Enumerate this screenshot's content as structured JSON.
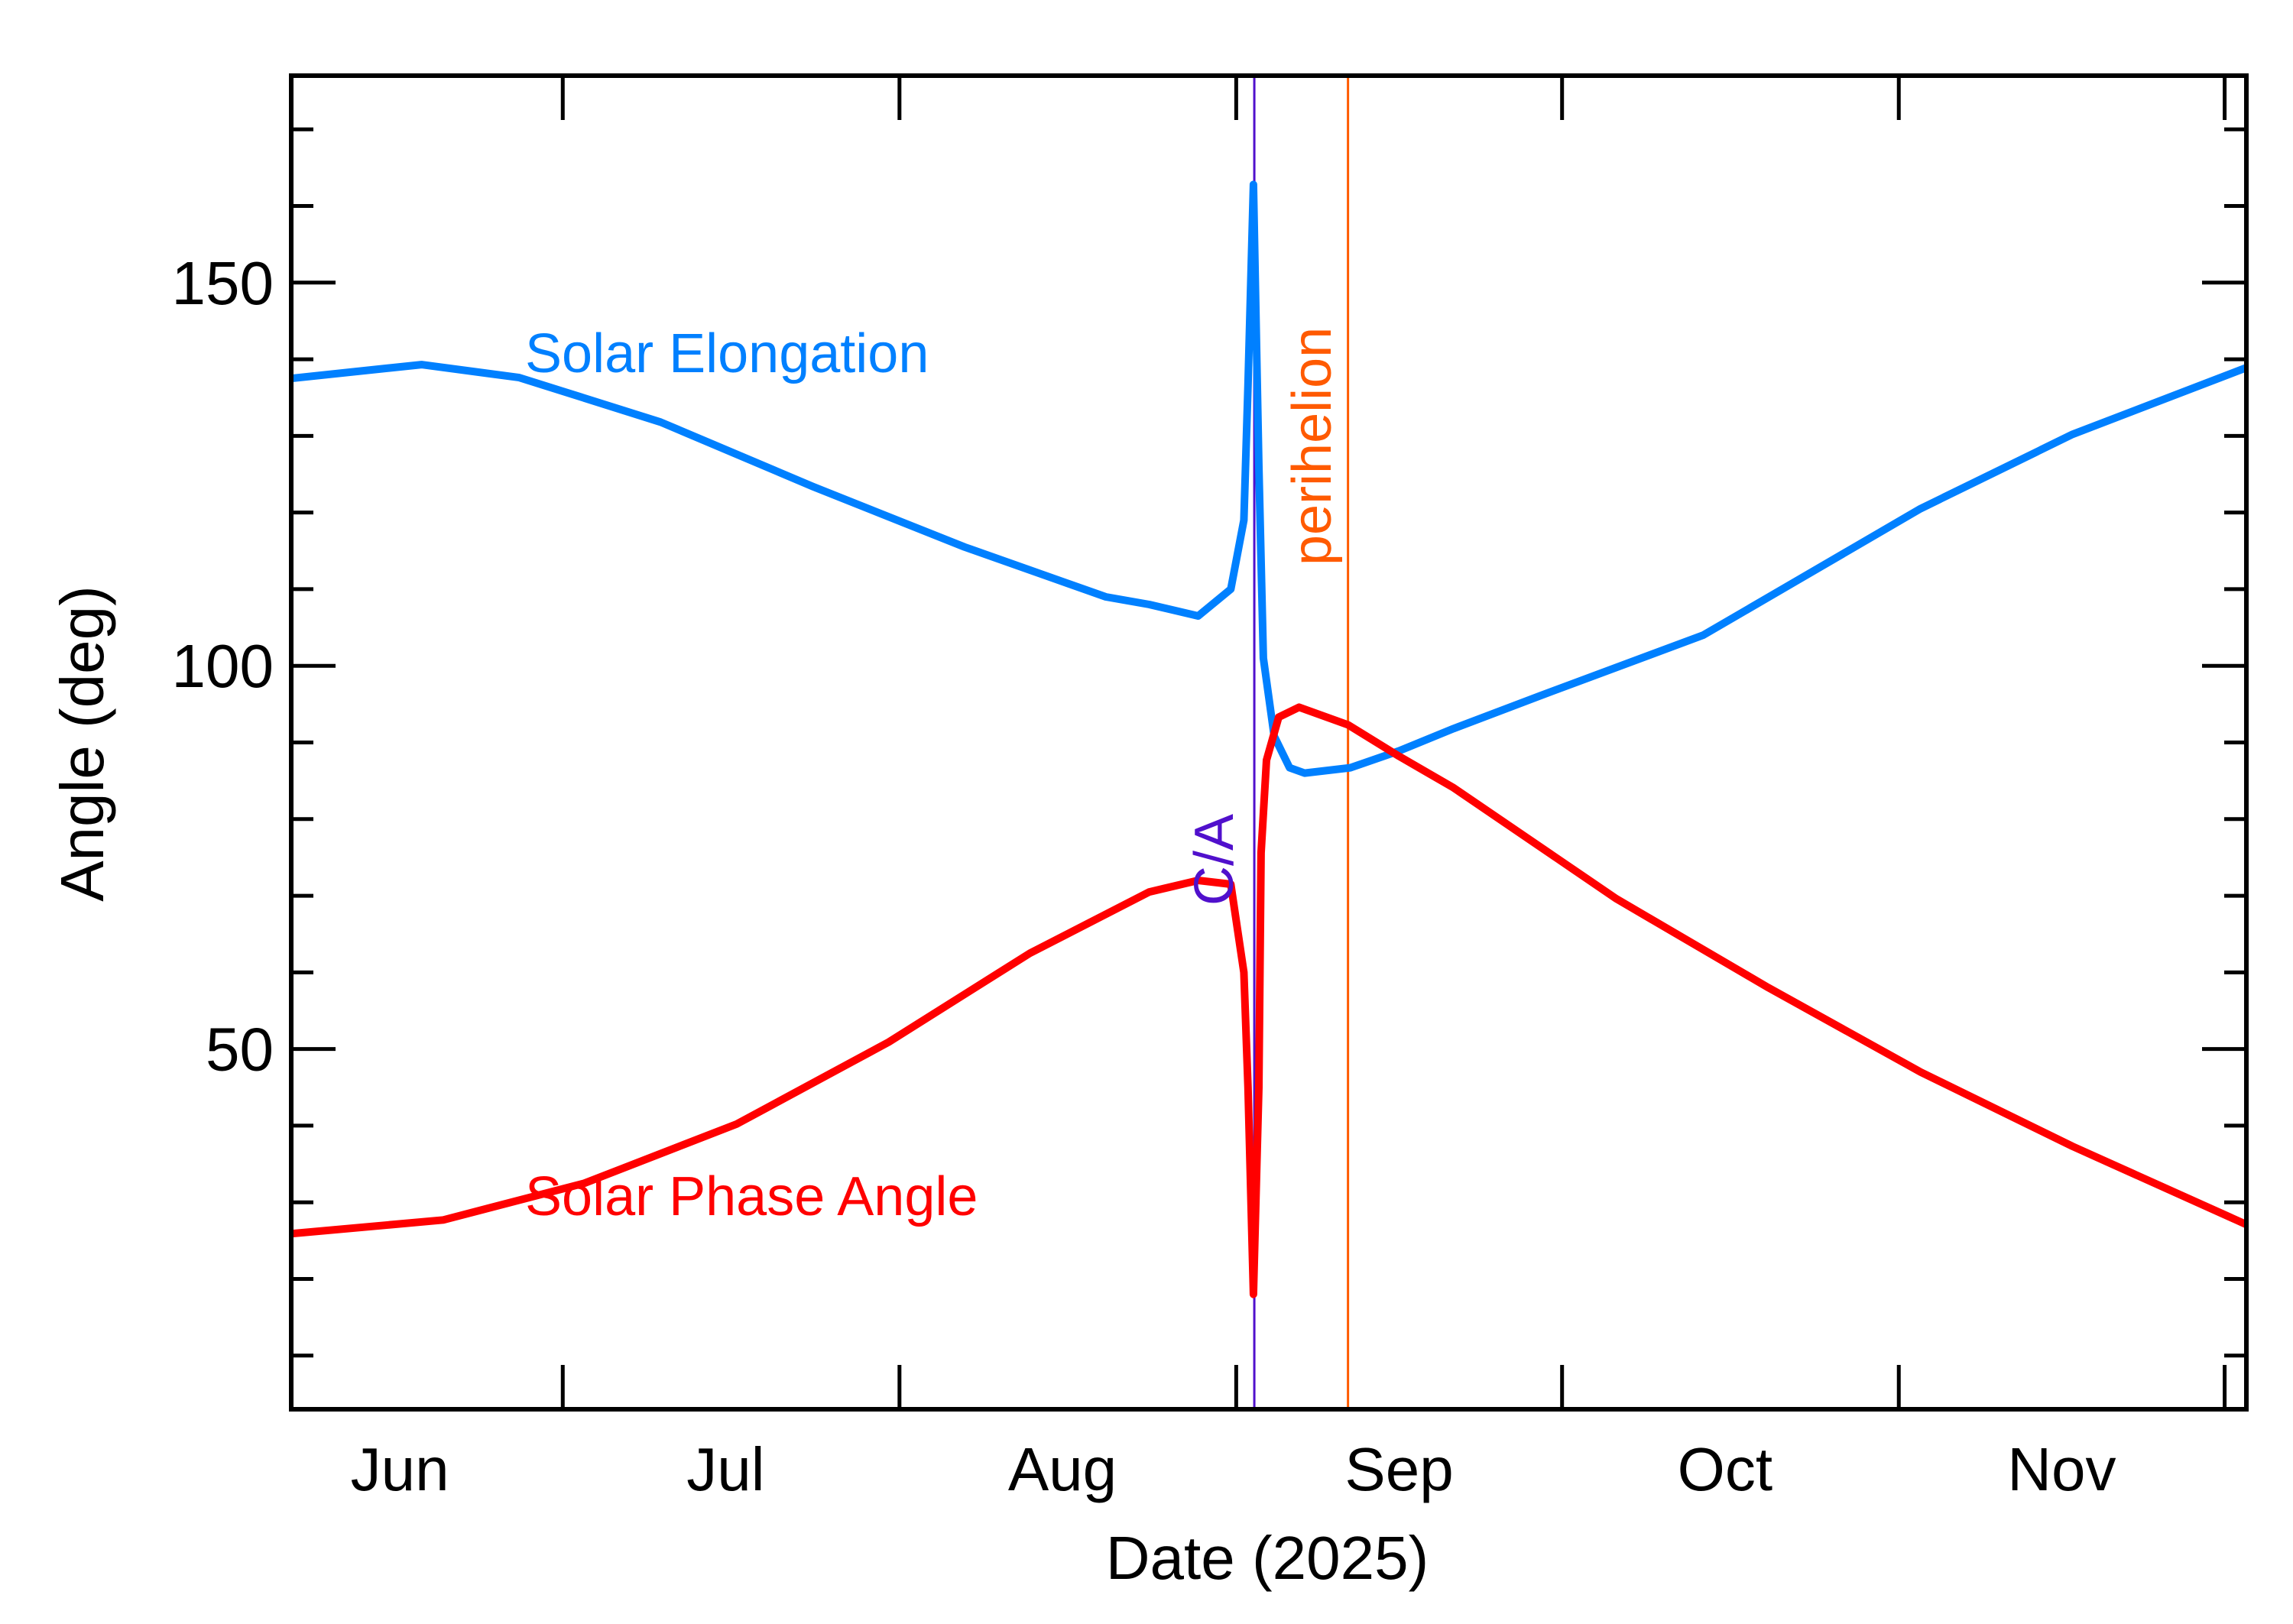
{
  "chart_data": {
    "type": "line",
    "title": "",
    "xlabel": "Date (2025)",
    "ylabel": "Angle (deg)",
    "xlim": [
      "2025-06-06",
      "2025-12-03"
    ],
    "ylim": [
      3,
      177
    ],
    "x_tick_labels": [
      "Jun",
      "Jul",
      "Aug",
      "Sep",
      "Oct",
      "Nov"
    ],
    "y_major_ticks": [
      50,
      100,
      150
    ],
    "y_minor_step": 10,
    "grid": false,
    "legend": "none (series labelled inline)",
    "series": [
      {
        "name": "Solar Elongation",
        "color": "#0080FF",
        "points": [
          [
            "2025-06-06",
            137.5
          ],
          [
            "2025-06-18",
            139.3
          ],
          [
            "2025-06-27",
            137.6
          ],
          [
            "2025-07-10",
            131.8
          ],
          [
            "2025-07-24",
            123.4
          ],
          [
            "2025-08-07",
            115.5
          ],
          [
            "2025-08-20",
            109.0
          ],
          [
            "2025-08-24",
            108.0
          ],
          [
            "2025-08-28T12:00",
            106.5
          ],
          [
            "2025-08-31T12:00",
            110.0
          ],
          [
            "2025-09-01T17:00",
            119.0
          ],
          [
            "2025-09-02T02:00",
            136.6
          ],
          [
            "2025-09-02T14:00",
            162.8
          ],
          [
            "2025-09-03T02:00",
            126.0
          ],
          [
            "2025-09-03T12:00",
            101.0
          ],
          [
            "2025-09-04T12:00",
            90.8
          ],
          [
            "2025-09-05T22:00",
            86.7
          ],
          [
            "2025-09-07T07:00",
            86.0
          ],
          [
            "2025-09-11T12:00",
            86.7
          ],
          [
            "2025-09-16",
            88.9
          ],
          [
            "2025-09-21",
            91.8
          ],
          [
            "2025-09-29",
            96.1
          ],
          [
            "2025-10-14",
            104.0
          ],
          [
            "2025-11-03",
            120.5
          ],
          [
            "2025-11-17",
            130.2
          ],
          [
            "2025-12-03",
            138.9
          ]
        ]
      },
      {
        "name": "Solar Phase Angle",
        "color": "#FF0000",
        "points": [
          [
            "2025-06-06",
            25.9
          ],
          [
            "2025-06-20",
            27.7
          ],
          [
            "2025-07-03",
            32.5
          ],
          [
            "2025-07-17",
            40.2
          ],
          [
            "2025-07-31",
            50.9
          ],
          [
            "2025-08-13",
            62.5
          ],
          [
            "2025-08-24",
            70.5
          ],
          [
            "2025-08-28T12:00",
            72.0
          ],
          [
            "2025-08-31T12:00",
            71.5
          ],
          [
            "2025-09-01T17:00",
            60.0
          ],
          [
            "2025-09-02T02:00",
            45.0
          ],
          [
            "2025-09-02T14:00",
            18.0
          ],
          [
            "2025-09-03T02:00",
            45.0
          ],
          [
            "2025-09-03T07:00",
            75.6
          ],
          [
            "2025-09-03T19:00",
            87.7
          ],
          [
            "2025-09-04T22:00",
            93.3
          ],
          [
            "2025-09-06T19:00",
            94.6
          ],
          [
            "2025-09-11T07:00",
            92.3
          ],
          [
            "2025-09-16",
            88.2
          ],
          [
            "2025-09-21",
            84.1
          ],
          [
            "2025-10-06",
            69.6
          ],
          [
            "2025-10-20",
            58.0
          ],
          [
            "2025-11-03",
            47.0
          ],
          [
            "2025-11-17",
            37.3
          ],
          [
            "2025-12-03",
            27.1
          ]
        ]
      }
    ],
    "markers": [
      {
        "label": "C/A",
        "date": "2025-09-02T16:00",
        "color": "#5010CC"
      },
      {
        "label": "perihelion",
        "date": "2025-09-11T07:00",
        "color": "#FF5A00"
      }
    ]
  }
}
